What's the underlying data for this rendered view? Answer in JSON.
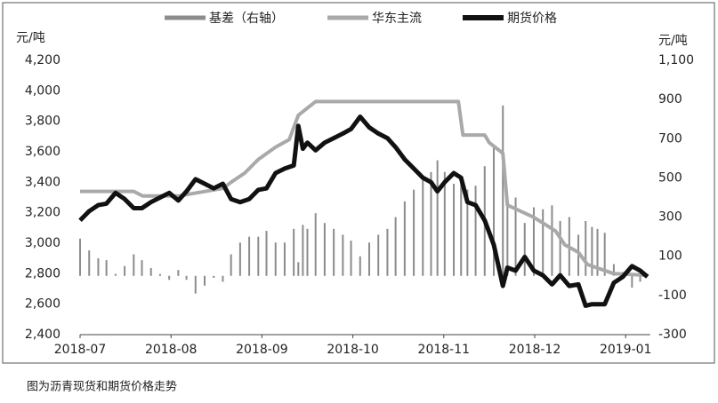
{
  "chart_data": {
    "type": "line",
    "caption": "图为沥青现货和期货价格走势",
    "y_label": "元/吨",
    "y2_label": "元/吨",
    "legend": "top",
    "xlim": [
      0,
      6.27
    ],
    "xticks": [
      {
        "value": 0,
        "label": "2018-07"
      },
      {
        "value": 1,
        "label": "2018-08"
      },
      {
        "value": 2,
        "label": "2018-09"
      },
      {
        "value": 3,
        "label": "2018-10"
      },
      {
        "value": 4,
        "label": "2018-11"
      },
      {
        "value": 5,
        "label": "2018-12"
      },
      {
        "value": 6,
        "label": "2019-01"
      }
    ],
    "ylim": [
      2400,
      4200
    ],
    "yticks": [
      {
        "value": 2400,
        "label": "2,400"
      },
      {
        "value": 2600,
        "label": "2,600"
      },
      {
        "value": 2800,
        "label": "2,800"
      },
      {
        "value": 3000,
        "label": "3,000"
      },
      {
        "value": 3200,
        "label": "3,200"
      },
      {
        "value": 3400,
        "label": "3,400"
      },
      {
        "value": 3600,
        "label": "3,600"
      },
      {
        "value": 3800,
        "label": "3,800"
      },
      {
        "value": 4000,
        "label": "4,000"
      },
      {
        "value": 4200,
        "label": "4,200"
      }
    ],
    "y2lim": [
      -300,
      1100
    ],
    "y2ticks": [
      -300,
      -100,
      100,
      300,
      500,
      700,
      900,
      {
        "value": 1100,
        "label": "1,100"
      }
    ],
    "x": [
      0,
      0.1,
      0.2,
      0.29,
      0.39,
      0.49,
      0.59,
      0.68,
      0.78,
      0.88,
      0.98,
      1.08,
      1.17,
      1.27,
      1.37,
      1.47,
      1.57,
      1.66,
      1.76,
      1.86,
      1.96,
      2.05,
      2.15,
      2.25,
      2.35,
      2.4,
      2.45,
      2.5,
      2.59,
      2.69,
      2.79,
      2.89,
      2.98,
      3.08,
      3.18,
      3.28,
      3.38,
      3.47,
      3.57,
      3.67,
      3.77,
      3.86,
      3.93,
      4.01,
      4.11,
      4.19,
      4.26,
      4.35,
      4.45,
      4.55,
      4.65,
      4.7,
      4.79,
      4.89,
      4.99,
      5.09,
      5.19,
      5.28,
      5.38,
      5.48,
      5.56,
      5.63,
      5.69,
      5.77,
      5.87,
      5.97,
      6.07,
      6.16,
      6.24
    ],
    "series": [
      {
        "name": "基差（右轴）",
        "type": "bar",
        "axis": "y2",
        "color": "#8c8c8c",
        "values": [
          190,
          130,
          90,
          80,
          10,
          50,
          110,
          80,
          40,
          10,
          -20,
          30,
          -20,
          -90,
          -50,
          -10,
          -30,
          110,
          170,
          200,
          200,
          230,
          170,
          170,
          240,
          70,
          260,
          240,
          320,
          270,
          240,
          210,
          180,
          100,
          170,
          210,
          240,
          300,
          380,
          440,
          500,
          530,
          590,
          530,
          470,
          500,
          440,
          460,
          560,
          670,
          870,
          410,
          400,
          270,
          350,
          340,
          360,
          280,
          300,
          210,
          280,
          250,
          240,
          220,
          60,
          20,
          -60,
          -30,
          10
        ]
      },
      {
        "name": "华东主流",
        "type": "line",
        "color": "#a9a9a9",
        "x": [
          0,
          0.59,
          0.69,
          1.08,
          1.57,
          1.66,
          1.81,
          1.96,
          2.15,
          2.3,
          2.4,
          2.59,
          4.16,
          4.21,
          4.45,
          4.5,
          4.65,
          4.7,
          4.99,
          5.23,
          5.33,
          5.48,
          5.58,
          5.87,
          6.24
        ],
        "values": [
          3340,
          3340,
          3310,
          3310,
          3360,
          3400,
          3460,
          3550,
          3630,
          3680,
          3840,
          3930,
          3930,
          3710,
          3710,
          3660,
          3590,
          3250,
          3170,
          3080,
          2990,
          2940,
          2860,
          2800,
          2790
        ]
      },
      {
        "name": "期货价格",
        "type": "line",
        "color": "#111111",
        "values": [
          3150,
          3210,
          3250,
          3260,
          3330,
          3290,
          3230,
          3230,
          3270,
          3300,
          3330,
          3280,
          3340,
          3420,
          3390,
          3360,
          3390,
          3290,
          3270,
          3290,
          3350,
          3360,
          3460,
          3490,
          3510,
          3770,
          3620,
          3660,
          3610,
          3660,
          3690,
          3720,
          3750,
          3830,
          3760,
          3720,
          3690,
          3630,
          3550,
          3490,
          3430,
          3400,
          3340,
          3400,
          3460,
          3430,
          3270,
          3250,
          3150,
          2990,
          2720,
          2840,
          2820,
          2910,
          2820,
          2790,
          2730,
          2790,
          2720,
          2730,
          2590,
          2600,
          2600,
          2600,
          2740,
          2780,
          2850,
          2820,
          2780
        ]
      }
    ]
  }
}
